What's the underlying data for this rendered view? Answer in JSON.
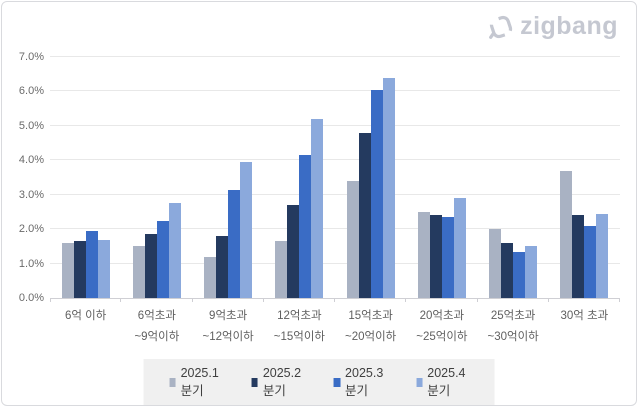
{
  "logo": {
    "text": "zigbang"
  },
  "colors": {
    "frame_border": "#d9dade",
    "gridline": "#e8e8e8",
    "axis_line": "#cfcfd4",
    "tick_label": "#6a6a6a",
    "legend_background": "#f0f0f0",
    "logo_gray": "#c5c8d1"
  },
  "chart_data": {
    "type": "bar",
    "title": "",
    "categories": [
      [
        "6억 이하"
      ],
      [
        "6억초과",
        "~9억이하"
      ],
      [
        "9억초과",
        "~12억이하"
      ],
      [
        "12억초과",
        "~15억이하"
      ],
      [
        "15억초과",
        "~20억이하"
      ],
      [
        "20억초과",
        "~25억이하"
      ],
      [
        "25억초과",
        "~30억이하"
      ],
      [
        "30억 초과"
      ]
    ],
    "series": [
      {
        "name": "2025.1분기",
        "color": "#a9b2c3",
        "values": [
          1.6,
          1.5,
          1.2,
          1.65,
          3.4,
          2.5,
          2.0,
          3.7
        ]
      },
      {
        "name": "2025.2분기",
        "color": "#243a5f",
        "values": [
          1.65,
          1.85,
          1.8,
          2.7,
          4.8,
          2.4,
          1.6,
          2.4
        ]
      },
      {
        "name": "2025.3분기",
        "color": "#3a6cc5",
        "values": [
          1.95,
          2.25,
          3.15,
          4.15,
          6.05,
          2.35,
          1.35,
          2.1
        ]
      },
      {
        "name": "2025.4분기",
        "color": "#8ba9dc",
        "values": [
          1.7,
          2.75,
          3.95,
          5.2,
          6.4,
          2.9,
          1.5,
          2.45
        ]
      }
    ],
    "ylabel": "",
    "xlabel": "",
    "ylim": [
      0,
      7
    ],
    "ytick_step": 1,
    "ytick_labels": [
      "0.0%",
      "1.0%",
      "2.0%",
      "3.0%",
      "4.0%",
      "5.0%",
      "6.0%",
      "7.0%"
    ],
    "grid": true,
    "legend_position": "bottom"
  }
}
